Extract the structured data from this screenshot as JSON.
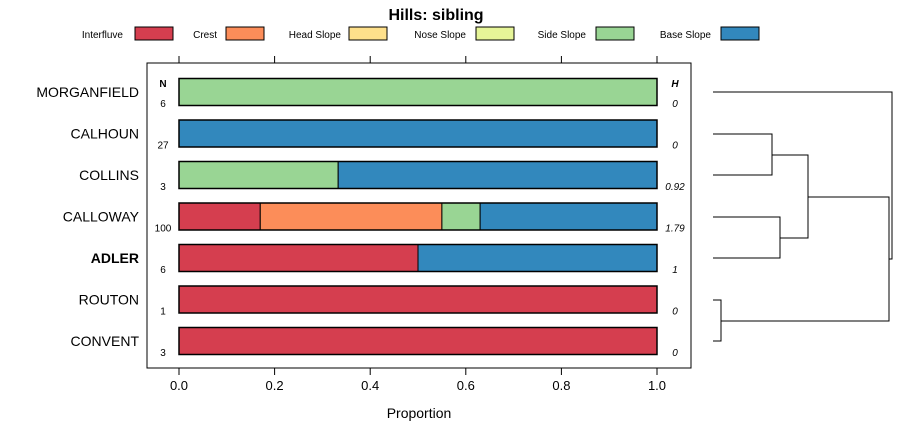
{
  "chart_data": {
    "type": "bar",
    "orientation": "horizontal-stacked",
    "title": "Hills: sibling",
    "xlabel": "Proportion",
    "ylabel": "",
    "xlim": [
      0,
      1
    ],
    "x_ticks": [
      "0.0",
      "0.2",
      "0.4",
      "0.6",
      "0.8",
      "1.0"
    ],
    "n_header": "N",
    "h_header": "H",
    "legend_placement": "top",
    "legend": [
      {
        "name": "Interfluve",
        "color": "#d53e4f"
      },
      {
        "name": "Crest",
        "color": "#fc8d59"
      },
      {
        "name": "Head Slope",
        "color": "#fee08b"
      },
      {
        "name": "Nose Slope",
        "color": "#e6f598"
      },
      {
        "name": "Side Slope",
        "color": "#99d594"
      },
      {
        "name": "Base Slope",
        "color": "#3288bd"
      }
    ],
    "rows": [
      {
        "label": "MORGANFIELD",
        "n": "6",
        "h": "0",
        "bold": false,
        "values": [
          0,
          0,
          0,
          0,
          1.0,
          0
        ]
      },
      {
        "label": "CALHOUN",
        "n": "27",
        "h": "0",
        "bold": false,
        "values": [
          0,
          0,
          0,
          0,
          0,
          1.0
        ]
      },
      {
        "label": "COLLINS",
        "n": "3",
        "h": "0.92",
        "bold": false,
        "values": [
          0,
          0,
          0,
          0,
          0.333,
          0.667
        ]
      },
      {
        "label": "CALLOWAY",
        "n": "100",
        "h": "1.79",
        "bold": false,
        "values": [
          0.17,
          0.38,
          0,
          0,
          0.08,
          0.37
        ]
      },
      {
        "label": "ADLER",
        "n": "6",
        "h": "1",
        "bold": true,
        "values": [
          0.5,
          0,
          0,
          0,
          0,
          0.5
        ]
      },
      {
        "label": "ROUTON",
        "n": "1",
        "h": "0",
        "bold": false,
        "values": [
          1.0,
          0,
          0,
          0,
          0,
          0
        ]
      },
      {
        "label": "CONVENT",
        "n": "3",
        "h": "0",
        "bold": false,
        "values": [
          1.0,
          0,
          0,
          0,
          0,
          0
        ]
      }
    ],
    "dendrogram": "hierarchical clustering of the series"
  }
}
